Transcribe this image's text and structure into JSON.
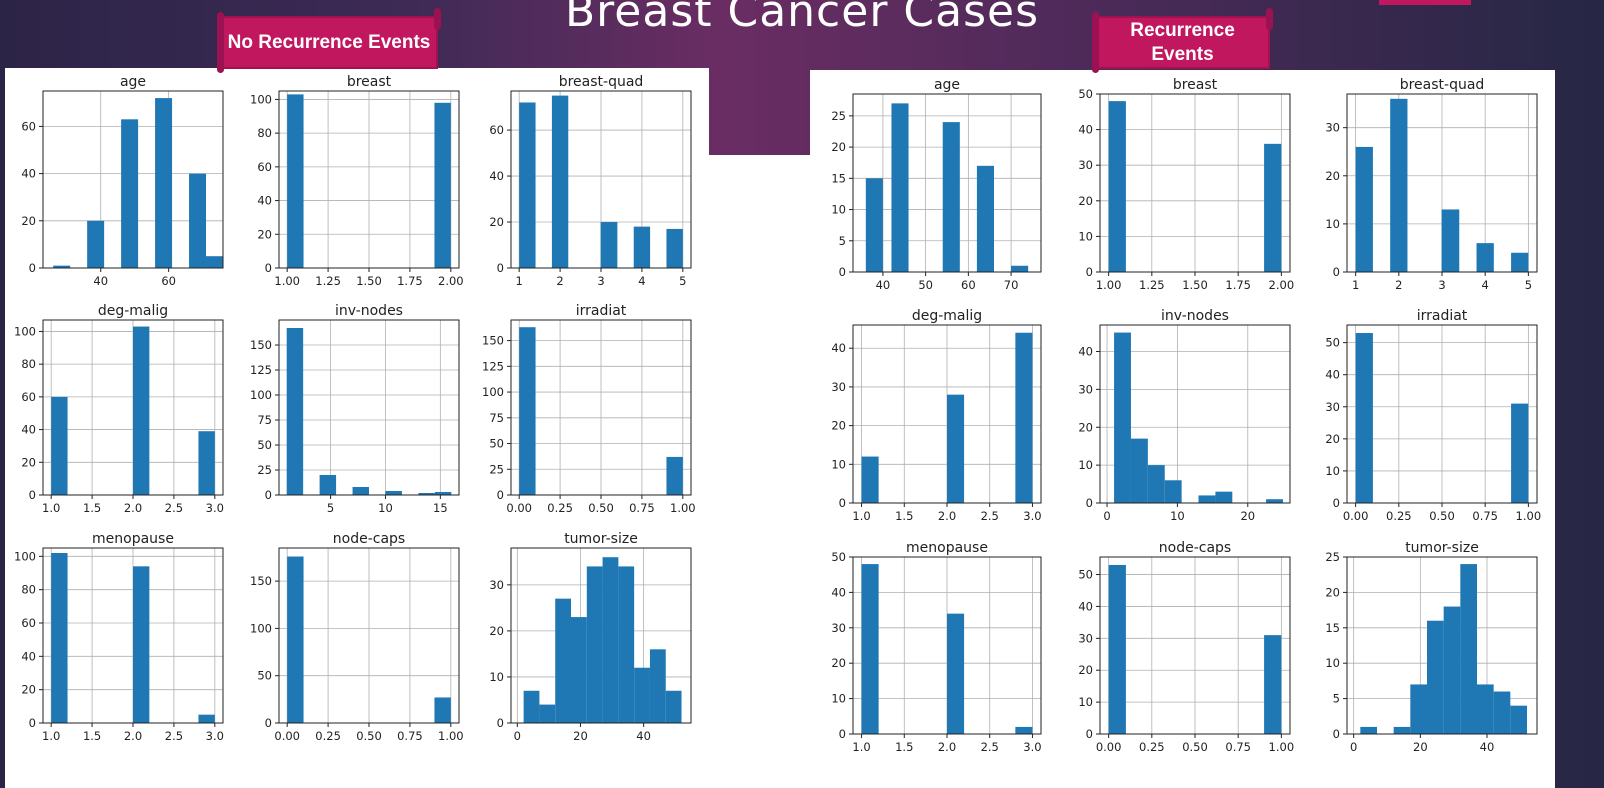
{
  "title": "Breast Cancer Cases",
  "ribbons": {
    "left": "No Recurrence Events",
    "right": "Recurrence Events"
  },
  "colors": {
    "bar": "#1f77b4",
    "accent": "#c0175e"
  },
  "chart_data": [
    {
      "group": "No Recurrence Events",
      "title": "age",
      "type": "bar",
      "xlim": [
        23,
        76
      ],
      "ylim": [
        0,
        75
      ],
      "xticks": [
        40,
        60
      ],
      "yticks": [
        0,
        20,
        40,
        60
      ],
      "bins": [
        [
          26,
          31,
          1
        ],
        [
          36,
          41,
          20
        ],
        [
          46,
          51,
          63
        ],
        [
          56,
          61,
          72
        ],
        [
          66,
          71,
          40
        ],
        [
          71,
          76,
          5
        ]
      ]
    },
    {
      "group": "No Recurrence Events",
      "title": "breast",
      "type": "bar",
      "xlim": [
        0.95,
        2.05
      ],
      "ylim": [
        0,
        105
      ],
      "xticks": [
        1.0,
        1.25,
        1.5,
        1.75,
        2.0
      ],
      "yticks": [
        0,
        20,
        40,
        60,
        80,
        100
      ],
      "bins": [
        [
          1.0,
          1.1,
          103
        ],
        [
          1.9,
          2.0,
          98
        ]
      ]
    },
    {
      "group": "No Recurrence Events",
      "title": "breast-quad",
      "type": "bar",
      "xlim": [
        0.8,
        5.2
      ],
      "ylim": [
        0,
        77
      ],
      "xticks": [
        1,
        2,
        3,
        4,
        5
      ],
      "yticks": [
        0,
        20,
        40,
        60
      ],
      "bins": [
        [
          1.0,
          1.4,
          72
        ],
        [
          1.8,
          2.2,
          75
        ],
        [
          2.99,
          3.4,
          20
        ],
        [
          3.8,
          4.2,
          18
        ],
        [
          4.6,
          5.0,
          17
        ]
      ]
    },
    {
      "group": "No Recurrence Events",
      "title": "deg-malig",
      "type": "bar",
      "xlim": [
        0.9,
        3.1
      ],
      "ylim": [
        0,
        107
      ],
      "xticks": [
        1.0,
        1.5,
        2.0,
        2.5,
        3.0
      ],
      "yticks": [
        0,
        20,
        40,
        60,
        80,
        100
      ],
      "bins": [
        [
          1.0,
          1.2,
          60
        ],
        [
          2.0,
          2.2,
          103
        ],
        [
          2.8,
          3.0,
          39
        ]
      ]
    },
    {
      "group": "No Recurrence Events",
      "title": "inv-nodes",
      "type": "bar",
      "xlim": [
        0.3,
        16.7
      ],
      "ylim": [
        0,
        175
      ],
      "xticks": [
        5,
        10,
        15
      ],
      "yticks": [
        0,
        25,
        50,
        75,
        100,
        125,
        150
      ],
      "bins": [
        [
          1,
          2.5,
          167
        ],
        [
          4,
          5.5,
          20
        ],
        [
          7,
          8.5,
          8
        ],
        [
          10,
          11.5,
          4
        ],
        [
          13,
          14.5,
          2
        ],
        [
          14.5,
          16,
          3
        ]
      ]
    },
    {
      "group": "No Recurrence Events",
      "title": "irradiat",
      "type": "bar",
      "xlim": [
        -0.05,
        1.05
      ],
      "ylim": [
        0,
        170
      ],
      "xticks": [
        0.0,
        0.25,
        0.5,
        0.75,
        1.0
      ],
      "yticks": [
        0,
        25,
        50,
        75,
        100,
        125,
        150
      ],
      "bins": [
        [
          0.0,
          0.1,
          163
        ],
        [
          0.9,
          1.0,
          37
        ]
      ]
    },
    {
      "group": "No Recurrence Events",
      "title": "menopause",
      "type": "bar",
      "xlim": [
        0.9,
        3.1
      ],
      "ylim": [
        0,
        105
      ],
      "xticks": [
        1.0,
        1.5,
        2.0,
        2.5,
        3.0
      ],
      "yticks": [
        0,
        20,
        40,
        60,
        80,
        100
      ],
      "bins": [
        [
          1.0,
          1.2,
          102
        ],
        [
          2.0,
          2.2,
          94
        ],
        [
          2.8,
          3.0,
          5
        ]
      ]
    },
    {
      "group": "No Recurrence Events",
      "title": "node-caps",
      "type": "bar",
      "xlim": [
        -0.05,
        1.05
      ],
      "ylim": [
        0,
        185
      ],
      "xticks": [
        0.0,
        0.25,
        0.5,
        0.75,
        1.0
      ],
      "yticks": [
        0,
        50,
        100,
        150
      ],
      "bins": [
        [
          0.0,
          0.1,
          176
        ],
        [
          0.9,
          1.0,
          27
        ]
      ]
    },
    {
      "group": "No Recurrence Events",
      "title": "tumor-size",
      "type": "bar",
      "xlim": [
        -2,
        55
      ],
      "ylim": [
        0,
        38
      ],
      "xticks": [
        0,
        20,
        40
      ],
      "yticks": [
        0,
        10,
        20,
        30
      ],
      "bins": [
        [
          2,
          7,
          7
        ],
        [
          7,
          12,
          4
        ],
        [
          12,
          17,
          27
        ],
        [
          17,
          22,
          23
        ],
        [
          22,
          27,
          34
        ],
        [
          27,
          32,
          36
        ],
        [
          32,
          37,
          34
        ],
        [
          37,
          42,
          12
        ],
        [
          42,
          47,
          16
        ],
        [
          47,
          52,
          7
        ]
      ]
    },
    {
      "group": "Recurrence Events",
      "title": "age",
      "type": "bar",
      "xlim": [
        33,
        77
      ],
      "ylim": [
        0,
        28.5
      ],
      "xticks": [
        40,
        50,
        60,
        70
      ],
      "yticks": [
        0,
        5,
        10,
        15,
        20,
        25
      ],
      "bins": [
        [
          36,
          40,
          15
        ],
        [
          42,
          46,
          27
        ],
        [
          54,
          58,
          24
        ],
        [
          62,
          66,
          17
        ],
        [
          70,
          74,
          1
        ]
      ]
    },
    {
      "group": "Recurrence Events",
      "title": "breast",
      "type": "bar",
      "xlim": [
        0.95,
        2.05
      ],
      "ylim": [
        0,
        50
      ],
      "xticks": [
        1.0,
        1.25,
        1.5,
        1.75,
        2.0
      ],
      "yticks": [
        0,
        10,
        20,
        30,
        40,
        50
      ],
      "bins": [
        [
          1.0,
          1.1,
          48
        ],
        [
          1.9,
          2.0,
          36
        ]
      ]
    },
    {
      "group": "Recurrence Events",
      "title": "breast-quad",
      "type": "bar",
      "xlim": [
        0.8,
        5.2
      ],
      "ylim": [
        0,
        37
      ],
      "xticks": [
        1,
        2,
        3,
        4,
        5
      ],
      "yticks": [
        0,
        10,
        20,
        30
      ],
      "bins": [
        [
          1.0,
          1.4,
          26
        ],
        [
          1.8,
          2.2,
          36
        ],
        [
          2.99,
          3.4,
          13
        ],
        [
          3.8,
          4.2,
          6
        ],
        [
          4.6,
          5.0,
          4
        ]
      ]
    },
    {
      "group": "Recurrence Events",
      "title": "deg-malig",
      "type": "bar",
      "xlim": [
        0.9,
        3.1
      ],
      "ylim": [
        0,
        46
      ],
      "xticks": [
        1.0,
        1.5,
        2.0,
        2.5,
        3.0
      ],
      "yticks": [
        0,
        10,
        20,
        30,
        40
      ],
      "bins": [
        [
          1.0,
          1.2,
          12
        ],
        [
          2.0,
          2.2,
          28
        ],
        [
          2.8,
          3.0,
          44
        ]
      ]
    },
    {
      "group": "Recurrence Events",
      "title": "inv-nodes",
      "type": "bar",
      "xlim": [
        -1,
        26
      ],
      "ylim": [
        0,
        47
      ],
      "xticks": [
        0,
        10,
        20
      ],
      "yticks": [
        0,
        10,
        20,
        30,
        40
      ],
      "bins": [
        [
          1,
          3.4,
          45
        ],
        [
          3.4,
          5.8,
          17
        ],
        [
          5.8,
          8.2,
          10
        ],
        [
          8.2,
          10.6,
          6
        ],
        [
          13,
          15.4,
          2
        ],
        [
          15.4,
          17.8,
          3
        ],
        [
          22.6,
          25,
          1
        ]
      ]
    },
    {
      "group": "Recurrence Events",
      "title": "irradiat",
      "type": "bar",
      "xlim": [
        -0.05,
        1.05
      ],
      "ylim": [
        0,
        55.5
      ],
      "xticks": [
        0.0,
        0.25,
        0.5,
        0.75,
        1.0
      ],
      "yticks": [
        0,
        10,
        20,
        30,
        40,
        50
      ],
      "bins": [
        [
          0.0,
          0.1,
          53
        ],
        [
          0.9,
          1.0,
          31
        ]
      ]
    },
    {
      "group": "Recurrence Events",
      "title": "menopause",
      "type": "bar",
      "xlim": [
        0.9,
        3.1
      ],
      "ylim": [
        0,
        50
      ],
      "xticks": [
        1.0,
        1.5,
        2.0,
        2.5,
        3.0
      ],
      "yticks": [
        0,
        10,
        20,
        30,
        40,
        50
      ],
      "bins": [
        [
          1.0,
          1.2,
          48
        ],
        [
          2.0,
          2.2,
          34
        ],
        [
          2.8,
          3.0,
          2
        ]
      ]
    },
    {
      "group": "Recurrence Events",
      "title": "node-caps",
      "type": "bar",
      "xlim": [
        -0.05,
        1.05
      ],
      "ylim": [
        0,
        55.5
      ],
      "xticks": [
        0.0,
        0.25,
        0.5,
        0.75,
        1.0
      ],
      "yticks": [
        0,
        10,
        20,
        30,
        40,
        50
      ],
      "bins": [
        [
          0.0,
          0.1,
          53
        ],
        [
          0.9,
          1.0,
          31
        ]
      ]
    },
    {
      "group": "Recurrence Events",
      "title": "tumor-size",
      "type": "bar",
      "xlim": [
        -2,
        55
      ],
      "ylim": [
        0,
        25
      ],
      "xticks": [
        0,
        20,
        40
      ],
      "yticks": [
        0,
        5,
        10,
        15,
        20,
        25
      ],
      "bins": [
        [
          2,
          7,
          1
        ],
        [
          12,
          17,
          1
        ],
        [
          17,
          22,
          7
        ],
        [
          22,
          27,
          16
        ],
        [
          27,
          32,
          18
        ],
        [
          32,
          37,
          24
        ],
        [
          37,
          42,
          7
        ],
        [
          42,
          47,
          6
        ],
        [
          47,
          52,
          4
        ]
      ]
    }
  ]
}
